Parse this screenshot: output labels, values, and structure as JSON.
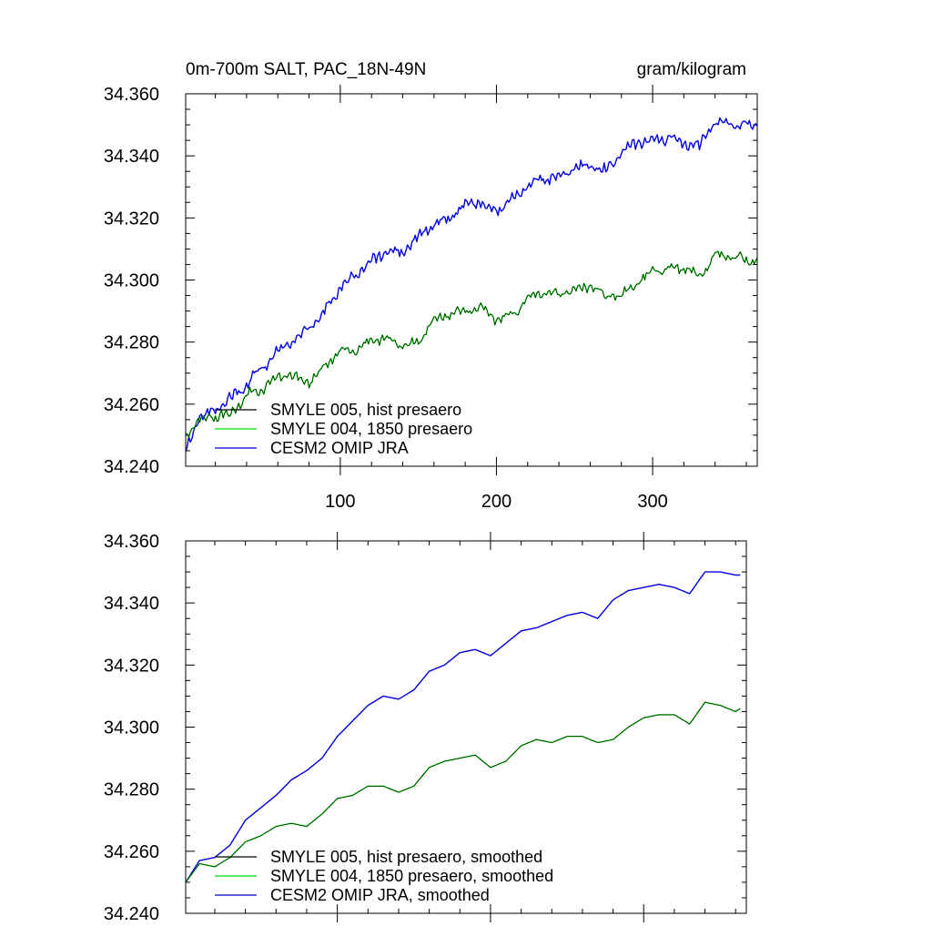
{
  "chart_data": [
    {
      "type": "line",
      "title": "0m-700m SALT, PAC_18N-49N",
      "units": "gram/kilogram",
      "xlim": [
        1,
        367
      ],
      "ylim": [
        34.24,
        34.36
      ],
      "yticks": [
        "34.240",
        "34.260",
        "34.280",
        "34.300",
        "34.320",
        "34.340",
        "34.360"
      ],
      "xticks": [
        "100",
        "200",
        "300"
      ],
      "legend": [
        {
          "label": "SMYLE 005, hist presaero",
          "color": "#000000"
        },
        {
          "label": "SMYLE 004, 1850 presaero",
          "color": "#00dd00"
        },
        {
          "label": "CESM2 OMIP JRA",
          "color": "#0000dd"
        }
      ],
      "series": [
        {
          "name": "CESM2 OMIP JRA",
          "color": "#0000dd",
          "x": [
            1,
            10,
            20,
            30,
            40,
            50,
            60,
            70,
            80,
            90,
            100,
            110,
            120,
            130,
            140,
            150,
            160,
            170,
            180,
            190,
            200,
            210,
            220,
            230,
            240,
            250,
            260,
            270,
            280,
            290,
            300,
            310,
            320,
            330,
            340,
            350,
            360,
            367
          ],
          "values": [
            34.245,
            34.256,
            34.258,
            34.262,
            34.266,
            34.272,
            34.277,
            34.281,
            34.284,
            34.29,
            34.297,
            34.302,
            34.306,
            34.309,
            34.309,
            34.314,
            34.318,
            34.32,
            34.324,
            34.325,
            34.322,
            34.326,
            34.33,
            34.333,
            34.333,
            34.336,
            34.337,
            34.335,
            34.341,
            34.344,
            34.345,
            34.346,
            34.344,
            34.343,
            34.351,
            34.35,
            34.35,
            34.35
          ],
          "noise": 0.0025
        },
        {
          "name": "SMYLE 004, 1850 presaero",
          "color": "#00dd00",
          "x": [
            1,
            10,
            20,
            30,
            40,
            50,
            60,
            70,
            80,
            90,
            100,
            110,
            120,
            130,
            140,
            150,
            160,
            170,
            180,
            190,
            200,
            210,
            220,
            230,
            240,
            250,
            260,
            270,
            280,
            290,
            300,
            310,
            320,
            330,
            340,
            350,
            360,
            367
          ],
          "values": [
            34.249,
            34.255,
            34.256,
            34.257,
            34.263,
            34.265,
            34.269,
            34.269,
            34.267,
            34.272,
            34.277,
            34.277,
            34.281,
            34.281,
            34.279,
            34.28,
            34.287,
            34.289,
            34.29,
            34.291,
            34.287,
            34.289,
            34.294,
            34.296,
            34.295,
            34.297,
            34.298,
            34.295,
            34.295,
            34.299,
            34.303,
            34.304,
            34.304,
            34.301,
            34.308,
            34.308,
            34.306,
            34.306
          ],
          "noise": 0.0022
        },
        {
          "name": "SMYLE 005, hist presaero",
          "color": "#000000",
          "x": [
            1,
            10,
            20,
            30,
            40,
            50,
            60,
            70,
            80,
            90,
            100,
            110,
            120,
            130,
            140,
            150,
            160,
            170,
            180,
            190,
            200,
            210,
            220,
            230,
            240,
            250,
            260,
            270,
            280,
            290,
            300,
            310,
            320,
            330,
            340,
            350,
            360,
            367
          ],
          "values": [
            34.249,
            34.255,
            34.256,
            34.257,
            34.263,
            34.265,
            34.269,
            34.269,
            34.267,
            34.272,
            34.277,
            34.277,
            34.281,
            34.281,
            34.279,
            34.28,
            34.287,
            34.289,
            34.29,
            34.291,
            34.287,
            34.289,
            34.294,
            34.296,
            34.295,
            34.297,
            34.298,
            34.295,
            34.295,
            34.299,
            34.303,
            34.304,
            34.304,
            34.301,
            34.308,
            34.308,
            34.306,
            34.306
          ],
          "noise": 0.0022
        }
      ]
    },
    {
      "type": "line",
      "title": "",
      "xlim": [
        1,
        367
      ],
      "ylim": [
        34.24,
        34.36
      ],
      "yticks": [
        "34.240",
        "34.260",
        "34.280",
        "34.300",
        "34.320",
        "34.340",
        "34.360"
      ],
      "legend": [
        {
          "label": "SMYLE 005, hist presaero, smoothed",
          "color": "#000000"
        },
        {
          "label": "SMYLE 004, 1850 presaero, smoothed",
          "color": "#00dd00"
        },
        {
          "label": "CESM2 OMIP JRA, smoothed",
          "color": "#0000dd"
        }
      ],
      "series": [
        {
          "name": "CESM2 OMIP JRA, smoothed",
          "color": "#0000dd",
          "x": [
            1,
            10,
            20,
            30,
            40,
            50,
            60,
            70,
            80,
            90,
            100,
            110,
            120,
            130,
            140,
            150,
            160,
            170,
            180,
            190,
            200,
            210,
            220,
            230,
            240,
            250,
            260,
            270,
            280,
            290,
            300,
            310,
            320,
            330,
            340,
            350,
            360,
            363
          ],
          "values": [
            34.25,
            34.257,
            34.258,
            34.262,
            34.27,
            34.274,
            34.278,
            34.283,
            34.286,
            34.29,
            34.297,
            34.302,
            34.307,
            34.31,
            34.309,
            34.312,
            34.318,
            34.32,
            34.324,
            34.325,
            34.323,
            34.327,
            34.331,
            34.332,
            34.334,
            34.336,
            34.337,
            34.335,
            34.341,
            34.344,
            34.345,
            34.346,
            34.345,
            34.343,
            34.35,
            34.35,
            34.349,
            34.349
          ]
        },
        {
          "name": "SMYLE 004, 1850 presaero, smoothed",
          "color": "#00dd00",
          "x": [
            1,
            10,
            20,
            30,
            40,
            50,
            60,
            70,
            80,
            90,
            100,
            110,
            120,
            130,
            140,
            150,
            160,
            170,
            180,
            190,
            200,
            210,
            220,
            230,
            240,
            250,
            260,
            270,
            280,
            290,
            300,
            310,
            320,
            330,
            340,
            350,
            360,
            363
          ],
          "values": [
            34.25,
            34.256,
            34.255,
            34.258,
            34.263,
            34.265,
            34.268,
            34.269,
            34.268,
            34.272,
            34.277,
            34.278,
            34.281,
            34.281,
            34.279,
            34.281,
            34.287,
            34.289,
            34.29,
            34.291,
            34.287,
            34.289,
            34.294,
            34.296,
            34.295,
            34.297,
            34.297,
            34.295,
            34.296,
            34.3,
            34.303,
            34.304,
            34.304,
            34.301,
            34.308,
            34.307,
            34.305,
            34.306
          ]
        },
        {
          "name": "SMYLE 005, hist presaero, smoothed",
          "color": "#000000",
          "x": [
            1,
            10,
            20,
            30,
            40,
            50,
            60,
            70,
            80,
            90,
            100,
            110,
            120,
            130,
            140,
            150,
            160,
            170,
            180,
            190,
            200,
            210,
            220,
            230,
            240,
            250,
            260,
            270,
            280,
            290,
            300,
            310,
            320,
            330,
            340,
            350,
            360,
            363
          ],
          "values": [
            34.25,
            34.256,
            34.255,
            34.258,
            34.263,
            34.265,
            34.268,
            34.269,
            34.268,
            34.272,
            34.277,
            34.278,
            34.281,
            34.281,
            34.279,
            34.281,
            34.287,
            34.289,
            34.29,
            34.291,
            34.287,
            34.289,
            34.294,
            34.296,
            34.295,
            34.297,
            34.297,
            34.295,
            34.296,
            34.3,
            34.303,
            34.304,
            34.304,
            34.301,
            34.308,
            34.307,
            34.305,
            34.306
          ]
        }
      ]
    }
  ]
}
